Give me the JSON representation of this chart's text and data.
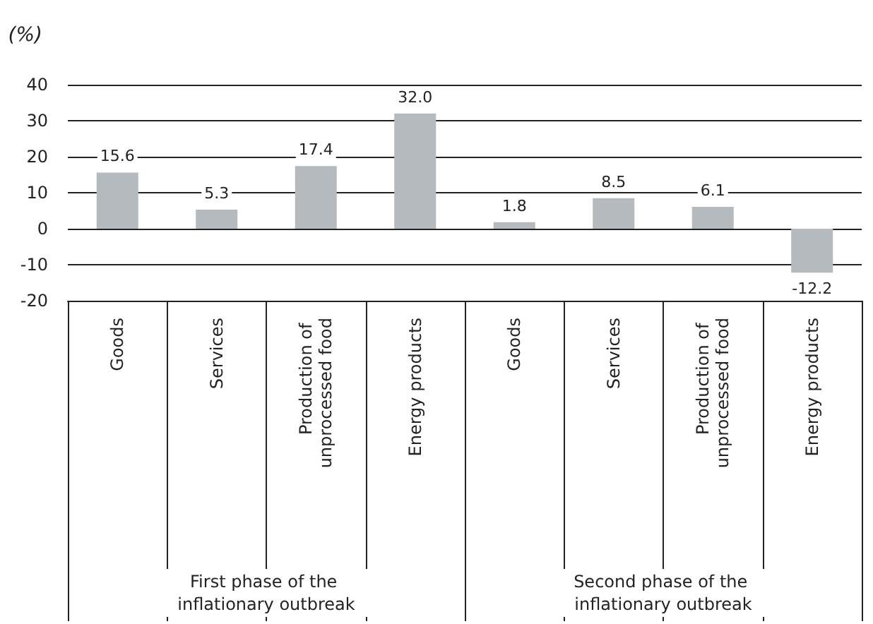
{
  "chart_data": {
    "type": "bar",
    "ylabel": "(%)",
    "categories": [
      "Goods",
      "Services",
      "Production of unprocessed food",
      "Energy products",
      "Goods",
      "Services",
      "Production of unprocessed food",
      "Energy products"
    ],
    "values": [
      15.6,
      5.3,
      17.4,
      32.0,
      1.8,
      8.5,
      6.1,
      -12.2
    ],
    "color": "#b4babe",
    "value_labels": [
      "15.6",
      "5.3",
      "17.4",
      "32.0",
      "1.8",
      "8.5",
      "6.1",
      "-12.2"
    ],
    "ylim": [
      -20,
      40
    ],
    "yticks": [
      -20,
      -10,
      0,
      10,
      20,
      30,
      40
    ],
    "grid": "y",
    "annotations": [
      "First phase of the inflationary outbreak",
      "Second phase of the inflationary outbreak"
    ]
  }
}
